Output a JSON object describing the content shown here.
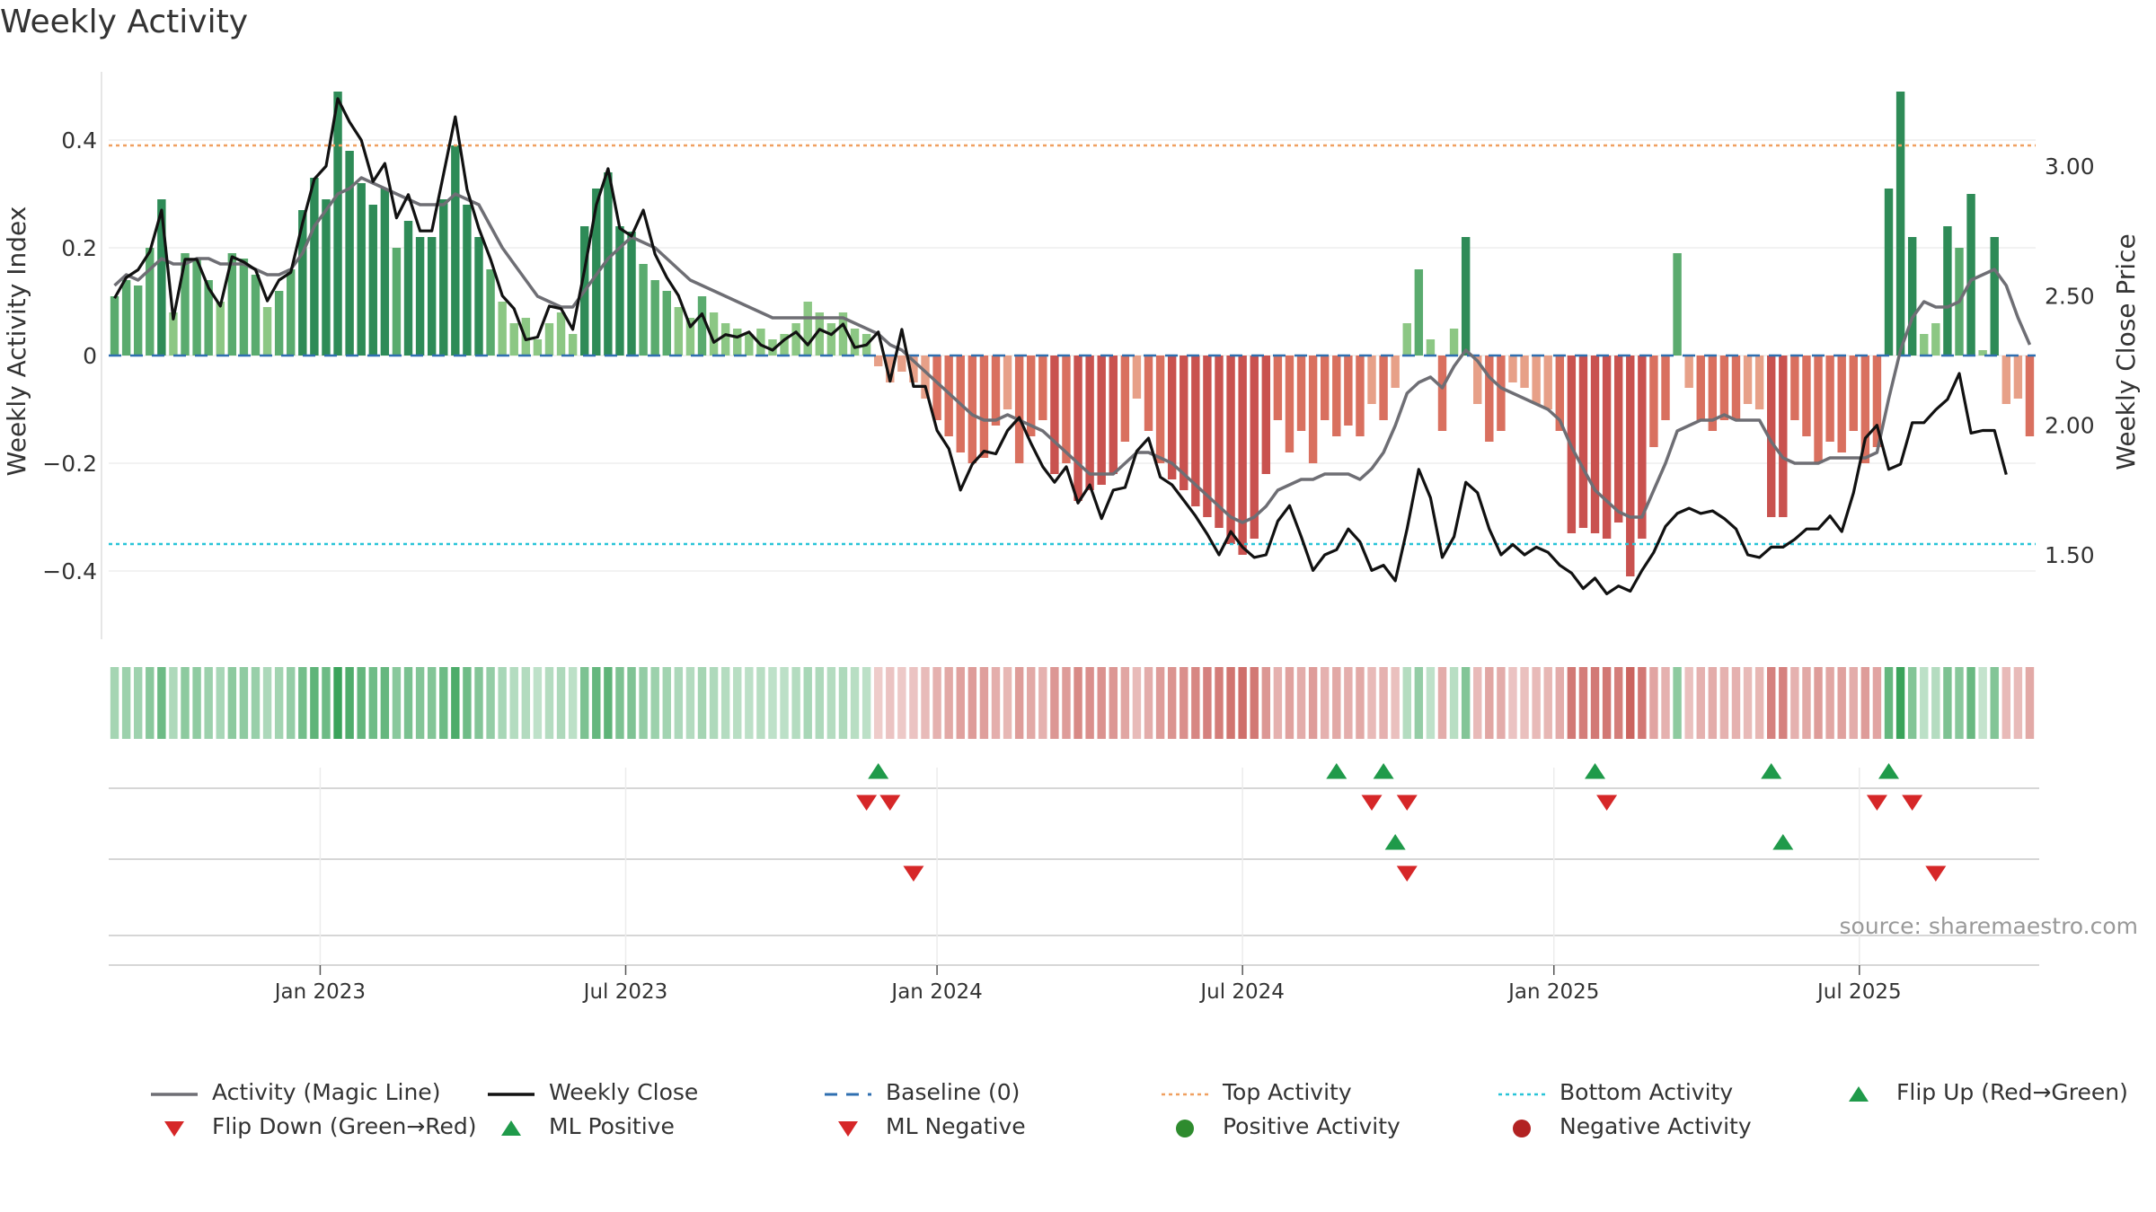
{
  "chart_data": {
    "type": "bar+line",
    "title": "Weekly Activity",
    "ylabel_left": "Weekly Activity Index",
    "ylabel_right": "Weekly Close Price",
    "ylim_left": [
      -0.52,
      0.53
    ],
    "yticks_left": [
      0.4,
      0.2,
      0,
      -0.2,
      -0.4
    ],
    "ytick_labels_left": [
      "0.4",
      "0.2",
      "0",
      "−0.2",
      "−0.4"
    ],
    "ylim_right": [
      1.2,
      3.3
    ],
    "yticks_right": [
      3.0,
      2.5,
      2.0,
      1.5
    ],
    "ytick_labels_right": [
      "3.00",
      "2.50",
      "2.00",
      "1.50"
    ],
    "x_ticks": [
      {
        "week": 17.5,
        "label": "Jan 2023"
      },
      {
        "week": 43.5,
        "label": "Jul 2023"
      },
      {
        "week": 70,
        "label": "Jan 2024"
      },
      {
        "week": 96,
        "label": "Jul 2024"
      },
      {
        "week": 122.5,
        "label": "Jan 2025"
      },
      {
        "week": 148.5,
        "label": "Jul 2025"
      }
    ],
    "top_activity": 0.39,
    "bottom_activity": -0.35,
    "baseline": 0,
    "activity": [
      0.11,
      0.14,
      0.13,
      0.2,
      0.29,
      0.08,
      0.19,
      0.18,
      0.14,
      0.1,
      0.19,
      0.18,
      0.15,
      0.09,
      0.12,
      0.16,
      0.27,
      0.33,
      0.29,
      0.49,
      0.38,
      0.32,
      0.28,
      0.31,
      0.2,
      0.25,
      0.22,
      0.22,
      0.29,
      0.39,
      0.28,
      0.22,
      0.16,
      0.1,
      0.06,
      0.07,
      0.03,
      0.06,
      0.08,
      0.04,
      0.24,
      0.31,
      0.34,
      0.24,
      0.23,
      0.17,
      0.14,
      0.12,
      0.09,
      0.07,
      0.11,
      0.08,
      0.06,
      0.05,
      0.04,
      0.05,
      0.03,
      0.04,
      0.06,
      0.1,
      0.08,
      0.06,
      0.08,
      0.05,
      0.04,
      -0.02,
      -0.05,
      -0.03,
      -0.05,
      -0.08,
      -0.12,
      -0.15,
      -0.18,
      -0.2,
      -0.19,
      -0.13,
      -0.1,
      -0.2,
      -0.15,
      -0.12,
      -0.22,
      -0.2,
      -0.27,
      -0.25,
      -0.24,
      -0.22,
      -0.16,
      -0.08,
      -0.14,
      -0.2,
      -0.23,
      -0.25,
      -0.28,
      -0.3,
      -0.32,
      -0.35,
      -0.37,
      -0.34,
      -0.22,
      -0.12,
      -0.18,
      -0.14,
      -0.2,
      -0.12,
      -0.15,
      -0.13,
      -0.15,
      -0.09,
      -0.12,
      -0.06,
      0.06,
      0.16,
      0.03,
      -0.14,
      0.05,
      0.22,
      -0.09,
      -0.16,
      -0.14,
      -0.05,
      -0.06,
      -0.09,
      -0.1,
      -0.14,
      -0.33,
      -0.32,
      -0.33,
      -0.34,
      -0.31,
      -0.41,
      -0.34,
      -0.17,
      -0.12,
      0.19,
      -0.06,
      -0.12,
      -0.14,
      -0.12,
      -0.12,
      -0.09,
      -0.1,
      -0.3,
      -0.3,
      -0.12,
      -0.15,
      -0.2,
      -0.16,
      -0.18,
      -0.14,
      -0.2,
      -0.17,
      0.31,
      0.49,
      0.22,
      0.04,
      0.06,
      0.24,
      0.2,
      0.3,
      0.01,
      0.22,
      -0.09,
      -0.08,
      -0.15
    ],
    "magic_line": [
      0.13,
      0.15,
      0.14,
      0.16,
      0.18,
      0.17,
      0.17,
      0.18,
      0.18,
      0.17,
      0.17,
      0.17,
      0.16,
      0.15,
      0.15,
      0.16,
      0.19,
      0.24,
      0.27,
      0.3,
      0.31,
      0.33,
      0.32,
      0.31,
      0.3,
      0.29,
      0.28,
      0.28,
      0.28,
      0.3,
      0.29,
      0.28,
      0.24,
      0.2,
      0.17,
      0.14,
      0.11,
      0.1,
      0.09,
      0.09,
      0.12,
      0.15,
      0.18,
      0.2,
      0.22,
      0.21,
      0.2,
      0.18,
      0.16,
      0.14,
      0.13,
      0.12,
      0.11,
      0.1,
      0.09,
      0.08,
      0.07,
      0.07,
      0.07,
      0.07,
      0.07,
      0.07,
      0.07,
      0.06,
      0.05,
      0.04,
      0.02,
      0.01,
      -0.01,
      -0.03,
      -0.05,
      -0.07,
      -0.09,
      -0.11,
      -0.12,
      -0.12,
      -0.11,
      -0.12,
      -0.13,
      -0.14,
      -0.16,
      -0.18,
      -0.2,
      -0.22,
      -0.22,
      -0.22,
      -0.2,
      -0.18,
      -0.18,
      -0.19,
      -0.2,
      -0.22,
      -0.24,
      -0.26,
      -0.28,
      -0.3,
      -0.31,
      -0.3,
      -0.28,
      -0.25,
      -0.24,
      -0.23,
      -0.23,
      -0.22,
      -0.22,
      -0.22,
      -0.23,
      -0.21,
      -0.18,
      -0.13,
      -0.07,
      -0.05,
      -0.04,
      -0.06,
      -0.02,
      0.01,
      -0.01,
      -0.04,
      -0.06,
      -0.07,
      -0.08,
      -0.09,
      -0.1,
      -0.12,
      -0.17,
      -0.21,
      -0.25,
      -0.27,
      -0.29,
      -0.3,
      -0.3,
      -0.25,
      -0.2,
      -0.14,
      -0.13,
      -0.12,
      -0.12,
      -0.11,
      -0.12,
      -0.12,
      -0.12,
      -0.16,
      -0.19,
      -0.2,
      -0.2,
      -0.2,
      -0.19,
      -0.19,
      -0.19,
      -0.19,
      -0.18,
      -0.08,
      0.01,
      0.07,
      0.1,
      0.09,
      0.09,
      0.1,
      0.14,
      0.15,
      0.16,
      0.13,
      0.07,
      0.02
    ],
    "weekly_close": [
      2.49,
      2.57,
      2.6,
      2.67,
      2.83,
      2.41,
      2.64,
      2.64,
      2.53,
      2.46,
      2.65,
      2.63,
      2.6,
      2.48,
      2.56,
      2.59,
      2.78,
      2.95,
      3.0,
      3.26,
      3.17,
      3.1,
      2.94,
      3.01,
      2.8,
      2.89,
      2.75,
      2.75,
      2.97,
      3.19,
      2.91,
      2.76,
      2.64,
      2.5,
      2.45,
      2.33,
      2.34,
      2.46,
      2.45,
      2.37,
      2.6,
      2.85,
      2.99,
      2.76,
      2.73,
      2.83,
      2.66,
      2.57,
      2.5,
      2.38,
      2.43,
      2.32,
      2.35,
      2.34,
      2.36,
      2.31,
      2.29,
      2.33,
      2.36,
      2.31,
      2.37,
      2.35,
      2.39,
      2.3,
      2.31,
      2.36,
      2.17,
      2.37,
      2.15,
      2.15,
      1.98,
      1.91,
      1.75,
      1.85,
      1.9,
      1.89,
      1.98,
      2.03,
      1.93,
      1.84,
      1.78,
      1.84,
      1.7,
      1.77,
      1.64,
      1.75,
      1.76,
      1.9,
      1.95,
      1.8,
      1.77,
      1.71,
      1.65,
      1.58,
      1.5,
      1.59,
      1.53,
      1.49,
      1.5,
      1.63,
      1.69,
      1.57,
      1.44,
      1.5,
      1.52,
      1.6,
      1.55,
      1.44,
      1.46,
      1.4,
      1.6,
      1.83,
      1.72,
      1.49,
      1.57,
      1.78,
      1.74,
      1.6,
      1.5,
      1.54,
      1.5,
      1.53,
      1.51,
      1.46,
      1.43,
      1.37,
      1.41,
      1.35,
      1.38,
      1.36,
      1.44,
      1.51,
      1.61,
      1.66,
      1.68,
      1.66,
      1.67,
      1.64,
      1.6,
      1.5,
      1.49,
      1.53,
      1.53,
      1.56,
      1.6,
      1.6,
      1.65,
      1.59,
      1.74,
      1.95,
      2.0,
      1.83,
      1.85,
      2.01,
      2.01,
      2.06,
      2.1,
      2.2,
      1.97,
      1.98,
      1.98,
      1.81
    ],
    "flips_row1": {
      "up": [
        65,
        104,
        108,
        126,
        141,
        151
      ],
      "down": [
        64,
        66,
        107,
        110,
        127,
        150,
        153
      ]
    },
    "flips_row2": {
      "up": [
        109,
        142
      ],
      "down": [
        68,
        110,
        155
      ]
    },
    "source": "source: sharemaestro.com",
    "colors": {
      "pos_strong": "#2e8b57",
      "pos_mid": "#5aab6e",
      "pos_light": "#8cc784",
      "neg_strong": "#c9524f",
      "neg_mid": "#d9705f",
      "neg_light": "#e7a088",
      "magic_line": "#6e6e74",
      "weekly_close": "#111111",
      "baseline": "#2f6fb0",
      "top_activity": "#f0a060",
      "bottom_activity": "#29c4d8",
      "flip_up": "#1f9a4a",
      "flip_down": "#d62728",
      "pos_dot": "#2e8b2e",
      "neg_dot": "#b22222"
    }
  },
  "legend": [
    {
      "label": "Activity (Magic Line)",
      "symbol": "line-gray"
    },
    {
      "label": "Weekly Close",
      "symbol": "line-black"
    },
    {
      "label": "Baseline (0)",
      "symbol": "dash-blue"
    },
    {
      "label": "Top Activity",
      "symbol": "dot-orange"
    },
    {
      "label": "Bottom Activity",
      "symbol": "dot-cyan"
    },
    {
      "label": "Flip Up (Red→Green)",
      "symbol": "triangle-up-green"
    },
    {
      "label": "Flip Down (Green→Red)",
      "symbol": "triangle-down-red"
    },
    {
      "label": "ML Positive",
      "symbol": "triangle-up-green"
    },
    {
      "label": "ML Negative",
      "symbol": "triangle-down-red"
    },
    {
      "label": "Positive Activity",
      "symbol": "circle-green"
    },
    {
      "label": "Negative Activity",
      "symbol": "circle-red"
    }
  ]
}
